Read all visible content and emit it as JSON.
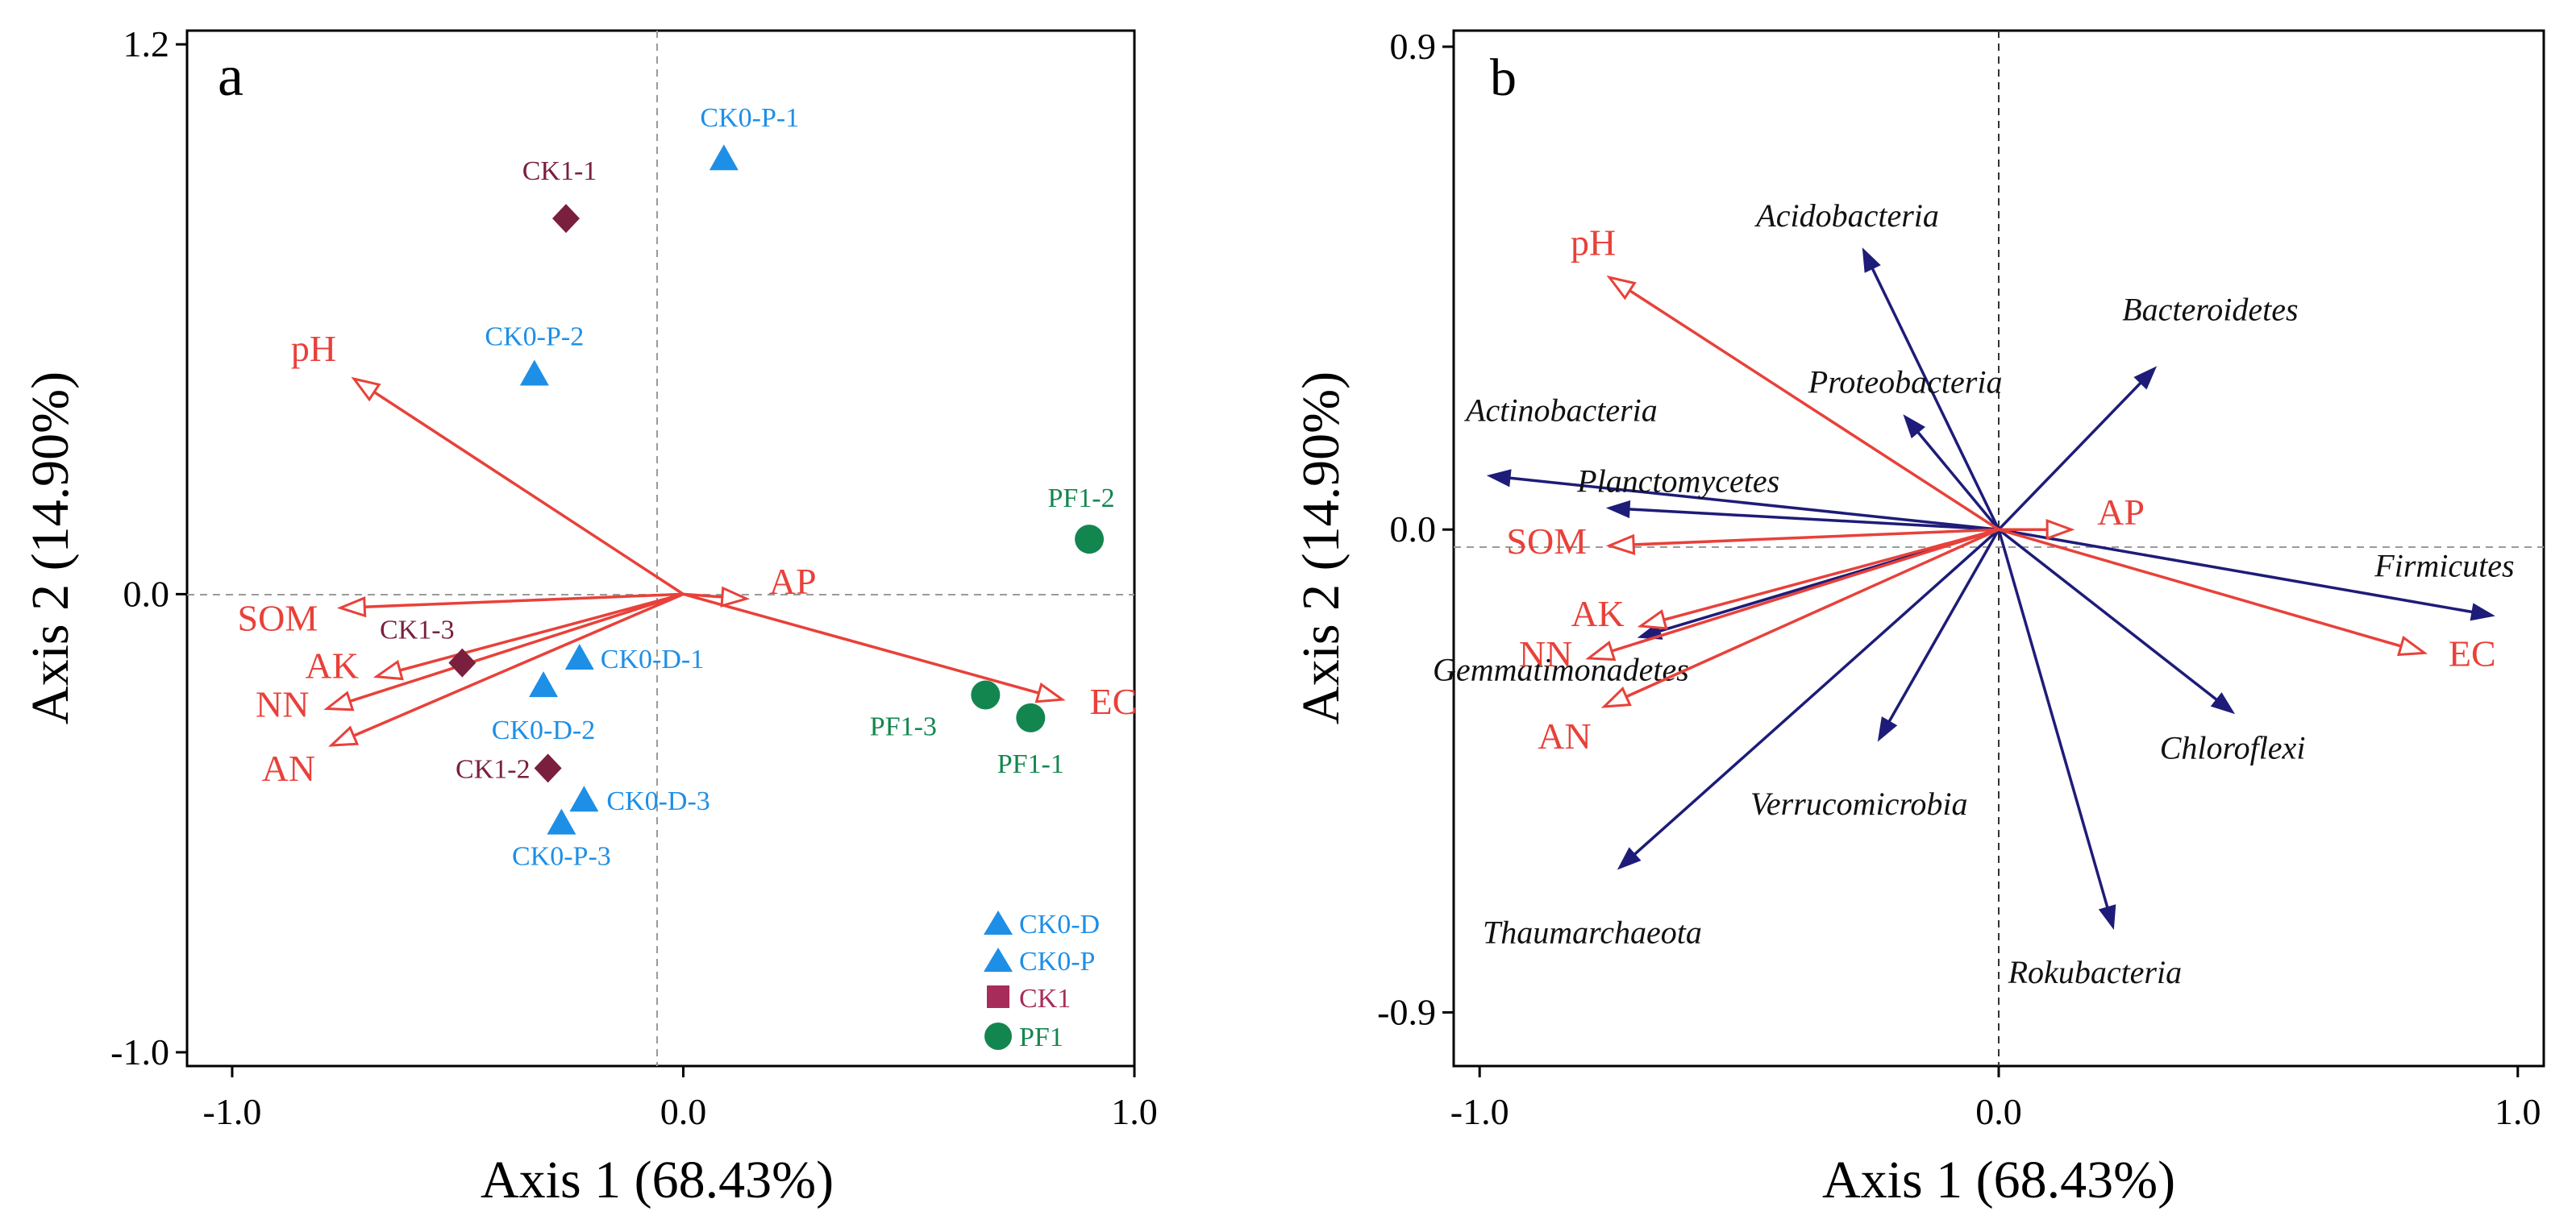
{
  "colors": {
    "env_arrow": "#e8413a",
    "taxa_arrow": "#1e1c78",
    "CK0": "#1e8fe6",
    "CK1": "#7a1f3d",
    "CK1_legend": "#a82c5a",
    "PF1": "#13864f",
    "axis": "#000000",
    "zero_line": "#9a9a9a"
  },
  "chart_data": [
    {
      "type": "scatter",
      "panel_label": "a",
      "xlabel": "Axis 1 (68.43%)",
      "ylabel": "Axis 2 (14.90%)",
      "xlim": [
        -1.1,
        1.0
      ],
      "ylim": [
        -1.03,
        1.23
      ],
      "x_tick_labels": [
        "-1.0",
        "0.0",
        "1.0"
      ],
      "x_ticks": [
        -1.0,
        0.0,
        1.0
      ],
      "y_tick_labels": [
        "1.2",
        "0.0",
        "-1.0"
      ],
      "y_ticks": [
        1.2,
        0.0,
        -1.0
      ],
      "zero_lines": true,
      "legend_position": "bottom-right",
      "legend": [
        {
          "label": "CK0-D",
          "marker": "triangle",
          "group": "CK0"
        },
        {
          "label": "CK0-P",
          "marker": "triangle",
          "group": "CK0"
        },
        {
          "label": "CK1",
          "marker": "square",
          "group": "CK1_legend"
        },
        {
          "label": "PF1",
          "marker": "circle",
          "group": "PF1"
        }
      ],
      "env_vectors": [
        {
          "label": "pH",
          "x": -0.73,
          "y": 0.47
        },
        {
          "label": "SOM",
          "x": -0.76,
          "y": -0.03
        },
        {
          "label": "AP",
          "x": 0.14,
          "y": -0.01
        },
        {
          "label": "AK",
          "x": -0.68,
          "y": -0.18
        },
        {
          "label": "NN",
          "x": -0.79,
          "y": -0.25
        },
        {
          "label": "AN",
          "x": -0.78,
          "y": -0.33
        },
        {
          "label": "EC",
          "x": 0.84,
          "y": -0.23
        }
      ],
      "samples": [
        {
          "label": "CK0-P-1",
          "x": 0.09,
          "y": 0.95,
          "group": "CK0",
          "marker": "triangle"
        },
        {
          "label": "CK1-1",
          "x": -0.26,
          "y": 0.82,
          "group": "CK1",
          "marker": "diamond"
        },
        {
          "label": "CK0-P-2",
          "x": -0.33,
          "y": 0.48,
          "group": "CK0",
          "marker": "triangle"
        },
        {
          "label": "PF1-2",
          "x": 0.9,
          "y": 0.12,
          "group": "PF1",
          "marker": "circle"
        },
        {
          "label": "CK1-3",
          "x": -0.49,
          "y": -0.15,
          "group": "CK1",
          "marker": "diamond"
        },
        {
          "label": "CK0-D-1",
          "x": -0.23,
          "y": -0.14,
          "group": "CK0",
          "marker": "triangle"
        },
        {
          "label": "CK0-D-2",
          "x": -0.31,
          "y": -0.2,
          "group": "CK0",
          "marker": "triangle"
        },
        {
          "label": "PF1-3",
          "x": 0.67,
          "y": -0.22,
          "group": "PF1",
          "marker": "circle"
        },
        {
          "label": "PF1-1",
          "x": 0.77,
          "y": -0.27,
          "group": "PF1",
          "marker": "circle"
        },
        {
          "label": "CK1-2",
          "x": -0.3,
          "y": -0.38,
          "group": "CK1",
          "marker": "diamond"
        },
        {
          "label": "CK0-D-3",
          "x": -0.22,
          "y": -0.45,
          "group": "CK0",
          "marker": "triangle"
        },
        {
          "label": "CK0-P-3",
          "x": -0.27,
          "y": -0.5,
          "group": "CK0",
          "marker": "triangle"
        }
      ]
    },
    {
      "type": "scatter",
      "panel_label": "b",
      "xlabel": "Axis 1 (68.43%)",
      "ylabel": "Axis 2 (14.90%)",
      "xlim": [
        -1.05,
        1.05
      ],
      "ylim": [
        -1.0,
        0.93
      ],
      "x_tick_labels": [
        "-1.0",
        "0.0",
        "1.0"
      ],
      "x_ticks": [
        -1.0,
        0.0,
        1.0
      ],
      "y_tick_labels": [
        "0.9",
        "0.0",
        "-0.9"
      ],
      "y_ticks": [
        0.9,
        0.0,
        -0.9
      ],
      "zero_lines": true,
      "env_vectors": [
        {
          "label": "pH",
          "x": -0.75,
          "y": 0.47
        },
        {
          "label": "SOM",
          "x": -0.75,
          "y": -0.03
        },
        {
          "label": "AP",
          "x": 0.14,
          "y": 0.0
        },
        {
          "label": "AK",
          "x": -0.69,
          "y": -0.18
        },
        {
          "label": "NN",
          "x": -0.79,
          "y": -0.24
        },
        {
          "label": "AN",
          "x": -0.76,
          "y": -0.33
        },
        {
          "label": "EC",
          "x": 0.82,
          "y": -0.23
        }
      ],
      "taxa_vectors": [
        {
          "label": "Acidobacteria",
          "x": -0.26,
          "y": 0.52
        },
        {
          "label": "Proteobacteria",
          "x": -0.18,
          "y": 0.21
        },
        {
          "label": "Bacteroidetes",
          "x": 0.3,
          "y": 0.3
        },
        {
          "label": "Actinobacteria",
          "x": -0.98,
          "y": 0.1
        },
        {
          "label": "Planctomycetes",
          "x": -0.75,
          "y": 0.04
        },
        {
          "label": "Gemmatimonadetes",
          "x": -0.69,
          "y": -0.2
        },
        {
          "label": "Firmicutes",
          "x": 0.95,
          "y": -0.16
        },
        {
          "label": "Chloroflexi",
          "x": 0.45,
          "y": -0.34
        },
        {
          "label": "Verrucomicrobia",
          "x": -0.23,
          "y": -0.39
        },
        {
          "label": "Thaumarchaeota",
          "x": -0.73,
          "y": -0.63
        },
        {
          "label": "Rokubacteria",
          "x": 0.22,
          "y": -0.74
        }
      ]
    }
  ]
}
